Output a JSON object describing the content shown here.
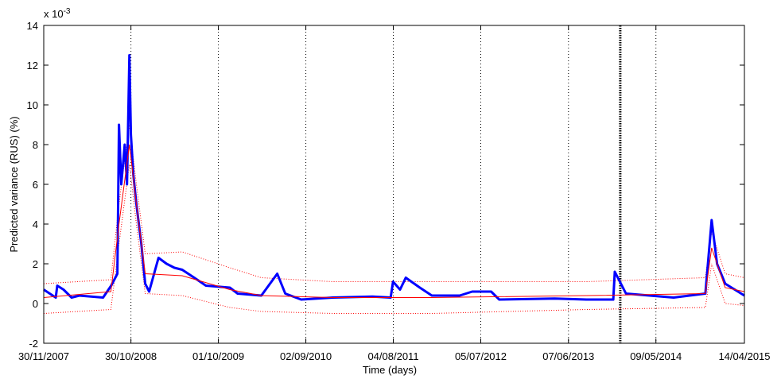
{
  "chart_data": {
    "type": "line",
    "xlabel": "Time (days)",
    "ylabel": "Predicted variance (RUS) (%)",
    "y_multiplier": {
      "base": "x 10",
      "exponent": "-3"
    },
    "xlim": [
      "30/11/2007",
      "14/04/2015"
    ],
    "xticks": [
      "30/11/2007",
      "30/10/2008",
      "01/10/2009",
      "02/09/2010",
      "04/08/2011",
      "05/07/2012",
      "07/06/2013",
      "09/05/2014",
      "14/04/2015"
    ],
    "ylim": [
      -2,
      14
    ],
    "yticks": [
      -2,
      0,
      2,
      4,
      6,
      8,
      10,
      12,
      14
    ],
    "xgrid": true,
    "marker_dates": [
      "23/12/2013"
    ],
    "series": [
      {
        "color": "#ff0000",
        "style": "dotted",
        "x": [
          "30/11/2007",
          "14/08/2008",
          "14/09/2008",
          "24/10/2008",
          "20/11/2008",
          "24/12/2008",
          "15/05/2009",
          "14/11/2009",
          "15/03/2010",
          "14/12/2010",
          "30/12/2011",
          "15/08/2013",
          "15/11/2014",
          "09/12/2014",
          "30/01/2015",
          "14/04/2015"
        ],
        "values": [
          1.0,
          1.2,
          5.0,
          9.0,
          6.0,
          2.5,
          2.6,
          1.8,
          1.3,
          1.1,
          1.1,
          1.1,
          1.3,
          3.6,
          1.5,
          1.3
        ]
      },
      {
        "color": "#ff0000",
        "style": "dotted",
        "x": [
          "30/11/2007",
          "14/08/2008",
          "14/09/2008",
          "24/10/2008",
          "20/11/2008",
          "24/12/2008",
          "15/05/2009",
          "14/11/2009",
          "15/03/2010",
          "14/12/2010",
          "30/12/2011",
          "15/08/2013",
          "15/11/2014",
          "09/12/2014",
          "30/01/2015",
          "14/04/2015"
        ],
        "values": [
          -0.5,
          -0.3,
          3.0,
          7.0,
          4.0,
          0.5,
          0.4,
          -0.2,
          -0.4,
          -0.5,
          -0.5,
          -0.3,
          -0.2,
          2.0,
          0.0,
          -0.1
        ]
      },
      {
        "color": "#0000ff",
        "style": "thick",
        "x": [
          "30/11/2007",
          "15/01/2008",
          "21/01/2008",
          "14/02/2008",
          "16/03/2008",
          "15/04/2008",
          "15/07/2008",
          "15/08/2008",
          "08/09/2008",
          "14/09/2008",
          "23/09/2008",
          "06/10/2008",
          "15/10/2008",
          "24/10/2008",
          "30/10/2008",
          "08/11/2008",
          "20/11/2008",
          "09/12/2008",
          "24/12/2008",
          "08/01/2009",
          "13/02/2009",
          "16/03/2009",
          "15/04/2009",
          "15/05/2009",
          "30/06/2009",
          "14/08/2009",
          "14/11/2009",
          "14/12/2009",
          "15/03/2010",
          "15/05/2010",
          "15/06/2010",
          "15/08/2010",
          "14/12/2010",
          "16/05/2011",
          "25/07/2011",
          "03/08/2011",
          "30/08/2011",
          "21/09/2011",
          "14/11/2011",
          "30/12/2011",
          "15/04/2012",
          "02/06/2012",
          "14/08/2012",
          "14/09/2012",
          "15/04/2013",
          "15/08/2013",
          "26/11/2013",
          "02/12/2013",
          "14/01/2014",
          "16/07/2014",
          "15/11/2014",
          "09/12/2014",
          "30/12/2014",
          "30/01/2015",
          "14/04/2015"
        ],
        "values": [
          0.7,
          0.3,
          0.9,
          0.7,
          0.3,
          0.4,
          0.3,
          0.9,
          1.5,
          9.0,
          6.0,
          8.0,
          6.0,
          12.5,
          8.5,
          6.5,
          5.0,
          3.0,
          1.0,
          0.6,
          2.3,
          2.0,
          1.8,
          1.7,
          1.3,
          0.9,
          0.8,
          0.5,
          0.4,
          1.5,
          0.5,
          0.2,
          0.3,
          0.35,
          0.3,
          1.1,
          0.7,
          1.3,
          0.8,
          0.4,
          0.4,
          0.6,
          0.6,
          0.2,
          0.25,
          0.2,
          0.2,
          1.6,
          0.5,
          0.3,
          0.5,
          4.2,
          2.0,
          1.0,
          0.4
        ]
      },
      {
        "color": "#ff0000",
        "style": "thin",
        "x": [
          "30/11/2007",
          "14/08/2008",
          "14/09/2008",
          "24/10/2008",
          "20/11/2008",
          "24/12/2008",
          "15/05/2009",
          "14/11/2009",
          "15/03/2010",
          "14/12/2010",
          "30/12/2011",
          "15/08/2013",
          "15/11/2014",
          "09/12/2014",
          "30/01/2015",
          "14/04/2015"
        ],
        "values": [
          0.3,
          0.6,
          4.0,
          8.0,
          5.0,
          1.5,
          1.4,
          0.7,
          0.4,
          0.3,
          0.3,
          0.4,
          0.5,
          2.8,
          0.8,
          0.6
        ]
      }
    ]
  }
}
